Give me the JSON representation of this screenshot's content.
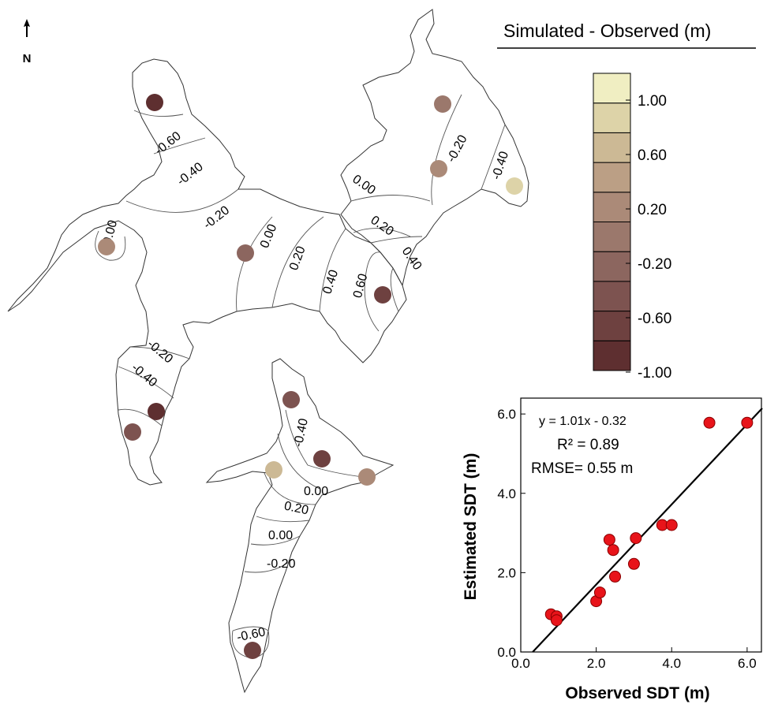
{
  "north_arrow": {
    "label": "N"
  },
  "legend": {
    "title": "Simulated - Observed (m)",
    "colors": [
      "#5e2f30",
      "#6e4140",
      "#7d5350",
      "#8c665f",
      "#9b786c",
      "#ab8a78",
      "#bb9f85",
      "#ccb995",
      "#ddd3a8",
      "#f0eec2"
    ],
    "tick_labels": [
      "1.00",
      "0.60",
      "0.20",
      "-0.20",
      "-0.60",
      "-1.00"
    ]
  },
  "map": {
    "contour_labels": [
      {
        "text": "-0.60"
      },
      {
        "text": "-0.40"
      },
      {
        "text": "-0.20"
      },
      {
        "text": "0.00"
      },
      {
        "text": "0.00"
      },
      {
        "text": "0.20"
      },
      {
        "text": "0.40"
      },
      {
        "text": "0.60"
      },
      {
        "text": "0.20"
      },
      {
        "text": "0.40"
      },
      {
        "text": "0.00"
      },
      {
        "text": "-0.20"
      },
      {
        "text": "-0.40"
      },
      {
        "text": "-0.20"
      },
      {
        "text": "-0.40"
      },
      {
        "text": "-0.40"
      },
      {
        "text": "0.00"
      },
      {
        "text": "0.20"
      },
      {
        "text": "0.00"
      },
      {
        "text": "-0.20"
      },
      {
        "text": "-0.60"
      }
    ],
    "stations": [
      {
        "color": "#5e2f30"
      },
      {
        "color": "#9b786c"
      },
      {
        "color": "#ab8a78"
      },
      {
        "color": "#ddd3a8"
      },
      {
        "color": "#ab8a78"
      },
      {
        "color": "#8c665f"
      },
      {
        "color": "#6e4140"
      },
      {
        "color": "#7d5350"
      },
      {
        "color": "#5e2f30"
      },
      {
        "color": "#7d5350"
      },
      {
        "color": "#6e4140"
      },
      {
        "color": "#ccb995"
      },
      {
        "color": "#ab8a78"
      },
      {
        "color": "#6e4140"
      }
    ]
  },
  "chart_data": {
    "type": "scatter",
    "xlabel": "Observed SDT (m)",
    "ylabel": "Estimated SDT (m)",
    "xlim": [
      0,
      6.4
    ],
    "ylim": [
      0,
      6.4
    ],
    "xticks": [
      "0.0",
      "2.0",
      "4.0",
      "6.0"
    ],
    "yticks": [
      "0.0",
      "2.0",
      "4.0",
      "6.0"
    ],
    "annotations": {
      "equation": "y = 1.01x - 0.32",
      "r2_label": "R² = 0.89",
      "rmse": "RMSE= 0.55 m"
    },
    "regression": {
      "slope": 1.01,
      "intercept": -0.32
    },
    "marker_color": "#e8141a",
    "x": [
      0.8,
      0.95,
      0.95,
      2.0,
      2.1,
      2.35,
      2.45,
      2.5,
      3.0,
      3.05,
      3.75,
      4.0,
      5.0,
      6.0
    ],
    "y": [
      0.95,
      0.9,
      0.8,
      1.28,
      1.5,
      2.83,
      2.57,
      1.9,
      2.22,
      2.87,
      3.2,
      3.2,
      5.78,
      5.78
    ]
  }
}
